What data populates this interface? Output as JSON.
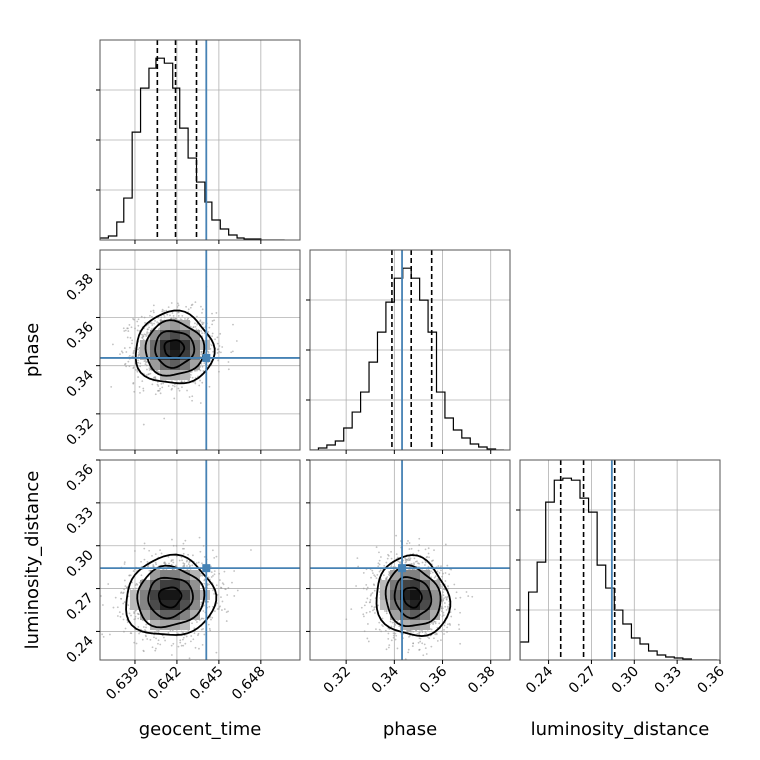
{
  "chart_data": {
    "type": "corner",
    "parameters": [
      {
        "name": "geocent_time",
        "range": [
          0.6365,
          0.6508
        ],
        "ticks": [
          0.639,
          0.642,
          0.645,
          0.648
        ],
        "tick_labels": [
          "0.639",
          "0.642",
          "0.645",
          "0.648"
        ],
        "truth": 0.6441,
        "quantiles": [
          0.6406,
          0.6419,
          0.6434
        ],
        "hist_bin_edges": [
          0.6365,
          0.6371,
          0.6377,
          0.6382,
          0.6388,
          0.6394,
          0.64,
          0.6405,
          0.6411,
          0.6417,
          0.6422,
          0.6428,
          0.6434,
          0.644,
          0.6445,
          0.6451,
          0.6457,
          0.6463,
          0.6468,
          0.6474,
          0.648,
          0.6485,
          0.6491,
          0.6497
        ],
        "hist_counts": [
          2,
          4,
          18,
          42,
          108,
          152,
          172,
          182,
          177,
          152,
          112,
          82,
          58,
          38,
          20,
          11,
          5,
          2,
          1,
          1,
          0,
          0,
          0
        ]
      },
      {
        "name": "phase",
        "range": [
          0.305,
          0.388
        ],
        "ticks": [
          0.32,
          0.34,
          0.36,
          0.38
        ],
        "tick_labels": [
          "0.32",
          "0.34",
          "0.36",
          "0.38"
        ],
        "truth": 0.3432,
        "quantiles": [
          0.339,
          0.347,
          0.3555
        ],
        "hist_bin_edges": [
          0.305,
          0.3085,
          0.312,
          0.3155,
          0.319,
          0.3225,
          0.326,
          0.3295,
          0.333,
          0.3365,
          0.34,
          0.3435,
          0.347,
          0.3505,
          0.354,
          0.3575,
          0.361,
          0.3645,
          0.368,
          0.3715,
          0.375,
          0.3785,
          0.382,
          0.3855
        ],
        "hist_counts": [
          0,
          2,
          5,
          9,
          22,
          38,
          58,
          88,
          118,
          148,
          172,
          182,
          172,
          150,
          118,
          58,
          32,
          20,
          12,
          6,
          3,
          1,
          0
        ]
      },
      {
        "name": "luminosity_distance",
        "range": [
          0.22,
          0.36
        ],
        "ticks": [
          0.24,
          0.27,
          0.3,
          0.33,
          0.36
        ],
        "tick_labels": [
          "0.24",
          "0.27",
          "0.30",
          "0.33",
          "0.36"
        ],
        "truth": 0.2843,
        "quantiles": [
          0.2485,
          0.2645,
          0.2863
        ],
        "hist_bin_edges": [
          0.22,
          0.226,
          0.232,
          0.238,
          0.244,
          0.25,
          0.256,
          0.262,
          0.268,
          0.274,
          0.28,
          0.286,
          0.292,
          0.298,
          0.304,
          0.31,
          0.316,
          0.322,
          0.328,
          0.334,
          0.34,
          0.346,
          0.352,
          0.358
        ],
        "hist_counts": [
          18,
          68,
          98,
          158,
          180,
          182,
          180,
          162,
          148,
          95,
          72,
          50,
          36,
          22,
          16,
          9,
          5,
          3,
          2,
          1,
          0,
          0,
          0
        ]
      }
    ],
    "pairs": [
      {
        "x": "geocent_time",
        "y": "phase",
        "mean": [
          0.6418,
          0.347
        ],
        "std": [
          0.0014,
          0.0075
        ],
        "rho": 0.0,
        "contour_levels_sigma": [
          0.5,
          1.0,
          1.5,
          2.0
        ]
      },
      {
        "x": "geocent_time",
        "y": "luminosity_distance",
        "mean": [
          0.6415,
          0.264
        ],
        "std": [
          0.0016,
          0.014
        ],
        "rho": 0.05,
        "contour_levels_sigma": [
          0.5,
          1.0,
          1.5,
          2.0
        ]
      },
      {
        "x": "phase",
        "y": "luminosity_distance",
        "mean": [
          0.3475,
          0.264
        ],
        "std": [
          0.0076,
          0.014
        ],
        "rho": -0.1,
        "contour_levels_sigma": [
          0.5,
          1.0,
          1.5,
          2.0
        ]
      }
    ],
    "truth_color": "#4682b4",
    "hist_color": "#000000",
    "grid": true,
    "xlabels": [
      "geocent_time",
      "phase",
      "luminosity_distance"
    ],
    "ylabels": [
      "",
      "phase",
      "luminosity_distance"
    ]
  }
}
